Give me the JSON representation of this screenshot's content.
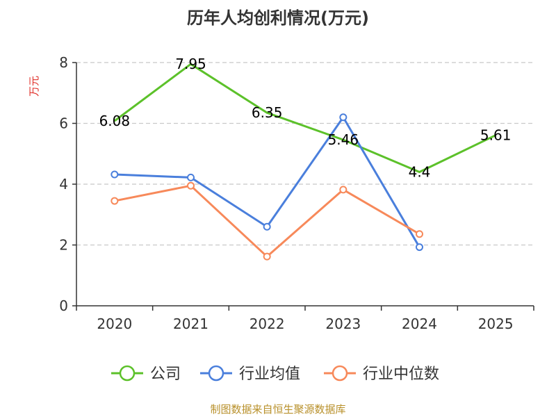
{
  "chart_data": {
    "type": "line",
    "title": "历年人均创利情况(万元)",
    "ylabel": "万元",
    "xlabel": "",
    "categories": [
      "2020",
      "2021",
      "2022",
      "2023",
      "2024",
      "2025"
    ],
    "ylim": [
      0,
      8
    ],
    "yticks": [
      0,
      2,
      4,
      6,
      8
    ],
    "grid": true,
    "legend_position": "bottom",
    "series": [
      {
        "name": "公司",
        "color": "#5cc12a",
        "values": [
          6.08,
          7.95,
          6.35,
          5.46,
          4.4,
          5.61
        ],
        "labels": [
          "6.08",
          "7.95",
          "6.35",
          "5.46",
          "4.4",
          "5.61"
        ],
        "show_labels": true,
        "markers": false
      },
      {
        "name": "行业均值",
        "color": "#4a7fdc",
        "values": [
          4.32,
          4.22,
          2.6,
          6.2,
          1.93,
          null
        ],
        "show_labels": false,
        "markers": true
      },
      {
        "name": "行业中位数",
        "color": "#f7895a",
        "values": [
          3.45,
          3.95,
          1.62,
          3.82,
          2.36,
          null
        ],
        "show_labels": false,
        "markers": true
      }
    ],
    "source": "制图数据来自恒生聚源数据库"
  }
}
